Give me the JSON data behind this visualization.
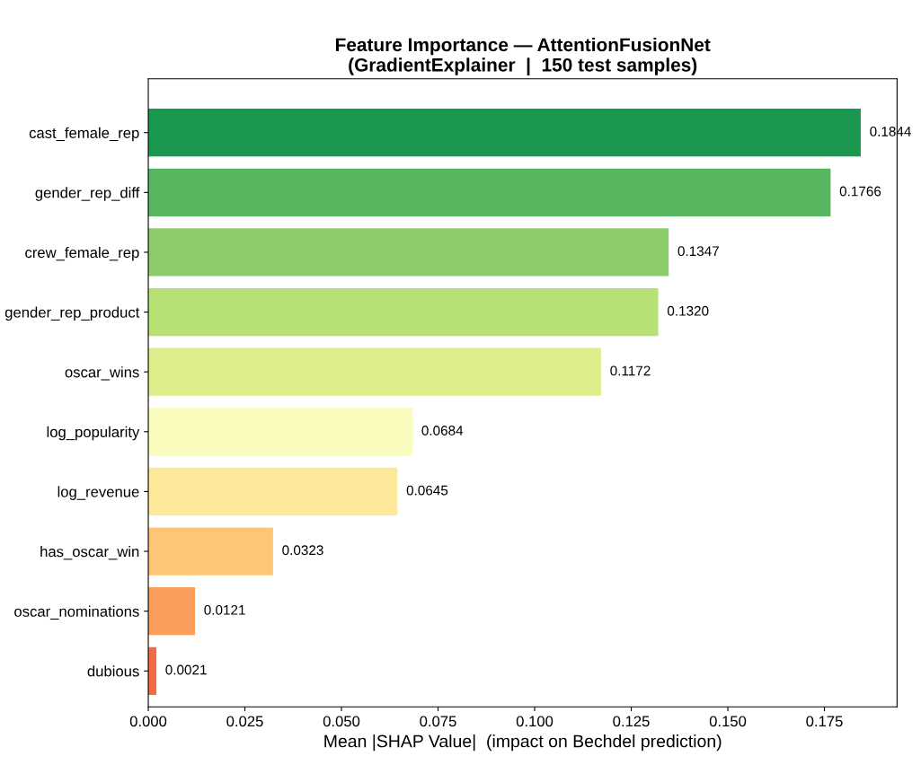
{
  "chart_data": {
    "type": "bar",
    "orientation": "horizontal",
    "title": "Feature Importance — AttentionFusionNet\n(GradientExplainer  |  150 test samples)",
    "xlabel": "Mean |SHAP Value|  (impact on Bechdel prediction)",
    "categories": [
      "cast_female_rep",
      "gender_rep_diff",
      "crew_female_rep",
      "gender_rep_product",
      "oscar_wins",
      "log_popularity",
      "log_revenue",
      "has_oscar_win",
      "oscar_nominations",
      "dubious"
    ],
    "values": [
      0.1844,
      0.1766,
      0.1347,
      0.132,
      0.1172,
      0.0684,
      0.0645,
      0.0323,
      0.0121,
      0.0021
    ],
    "value_labels": [
      "0.1844",
      "0.1766",
      "0.1347",
      "0.1320",
      "0.1172",
      "0.0684",
      "0.0645",
      "0.0323",
      "0.0121",
      "0.0021"
    ],
    "colors": [
      "#1a9850",
      "#57b65f",
      "#8ccc6a",
      "#b7e075",
      "#dcef8c",
      "#f9fcbd",
      "#fee99a",
      "#fdc677",
      "#fa9e5b",
      "#f26b43"
    ],
    "xlim": [
      0,
      0.1938
    ],
    "xticks": [
      {
        "value": 0,
        "label": "0.000"
      },
      {
        "value": 0.025,
        "label": "0.025"
      },
      {
        "value": 0.05,
        "label": "0.050"
      },
      {
        "value": 0.075,
        "label": "0.075"
      },
      {
        "value": 0.1,
        "label": "0.100"
      },
      {
        "value": 0.125,
        "label": "0.125"
      },
      {
        "value": 0.15,
        "label": "0.150"
      },
      {
        "value": 0.175,
        "label": "0.175"
      }
    ],
    "grid": false,
    "legend": false
  }
}
